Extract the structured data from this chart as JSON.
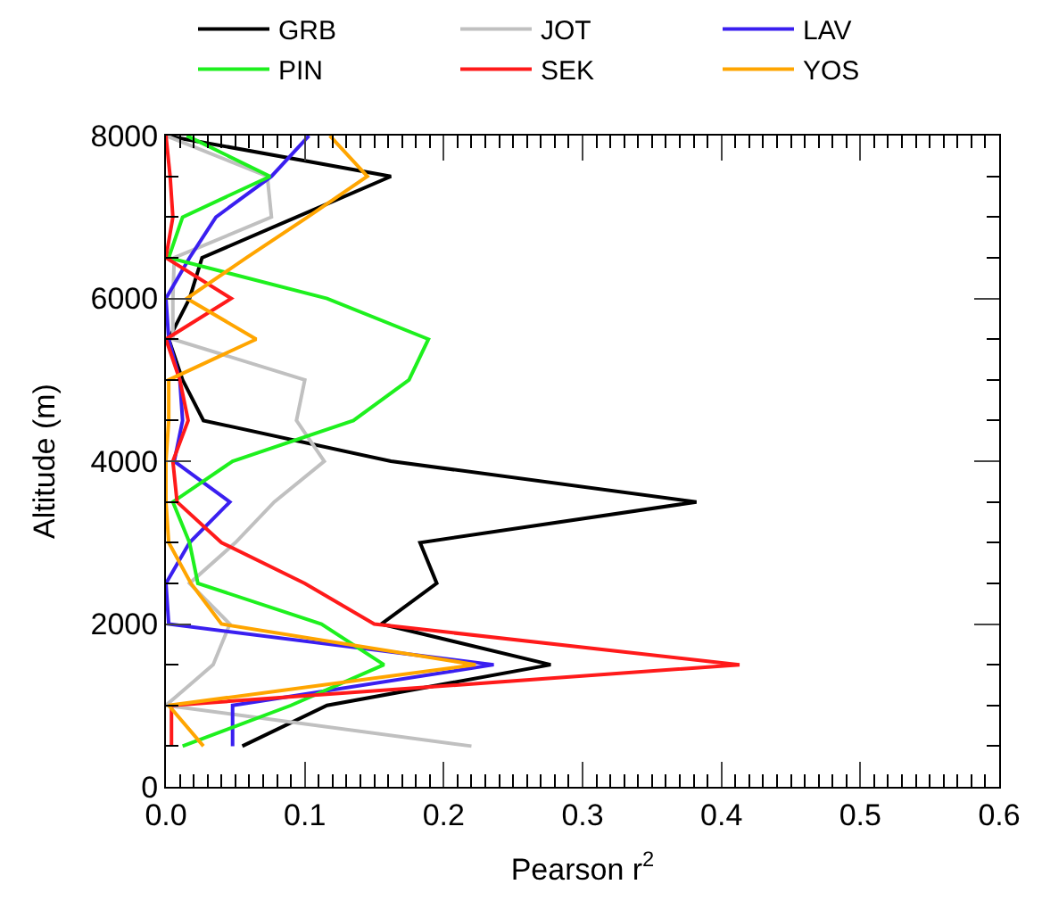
{
  "chart_data": {
    "type": "line",
    "xlabel": "Pearson r$^{2}$",
    "ylabel": "Altitude (m)",
    "xlim": [
      0,
      0.6
    ],
    "xticks": [
      {
        "value": 0,
        "label": "0.0"
      },
      0.1,
      0.2,
      0.3,
      0.4,
      0.5,
      0.6
    ],
    "ylim": [
      0,
      8000
    ],
    "yticks": [
      0,
      2000,
      4000,
      6000,
      8000
    ],
    "legend": "top",
    "marker": "none",
    "line_style": "solid",
    "series": [
      {
        "name": "GRB",
        "color": "#000000",
        "x": [
          0.055,
          0.116,
          0.277,
          0.155,
          0.195,
          0.183,
          0.382,
          0.162,
          0.027,
          0.012,
          0.002,
          0.017,
          0.026,
          0.094,
          0.162,
          0.0
        ],
        "values": [
          500,
          1000,
          1500,
          2000,
          2500,
          3000,
          3500,
          4000,
          4500,
          5000,
          5500,
          6000,
          6500,
          7000,
          7500,
          8000
        ]
      },
      {
        "name": "JOT",
        "color": "#c0c0c0",
        "x": [
          0.22,
          0.0,
          0.034,
          0.046,
          0.017,
          0.05,
          0.078,
          0.114,
          0.094,
          0.1,
          0.005,
          0.005,
          0.006,
          0.076,
          0.073,
          0.0
        ],
        "values": [
          500,
          1000,
          1500,
          2000,
          2500,
          3000,
          3500,
          4000,
          4500,
          5000,
          5500,
          6000,
          6500,
          7000,
          7500,
          8000
        ]
      },
      {
        "name": "LAV",
        "color": "#3a1ff0",
        "x": [
          0.048,
          0.048,
          0.236,
          0.002,
          0.0,
          0.017,
          0.046,
          0.006,
          0.012,
          0.01,
          0.002,
          0.0,
          0.017,
          0.036,
          0.076,
          0.103
        ],
        "values": [
          500,
          1000,
          1500,
          2000,
          2500,
          3000,
          3500,
          4000,
          4500,
          5000,
          5500,
          6000,
          6500,
          7000,
          7500,
          8000
        ]
      },
      {
        "name": "PIN",
        "color": "#1ef01e",
        "x": [
          0.012,
          0.09,
          0.157,
          0.112,
          0.023,
          0.017,
          0.005,
          0.048,
          0.135,
          0.175,
          0.189,
          0.116,
          0.002,
          0.012,
          0.075,
          0.015
        ],
        "values": [
          500,
          1000,
          1500,
          2000,
          2500,
          3000,
          3500,
          4000,
          4500,
          5000,
          5500,
          6000,
          6500,
          7000,
          7500,
          8000
        ]
      },
      {
        "name": "SEK",
        "color": "#ff1a1a",
        "x": [
          0.004,
          0.004,
          0.413,
          0.15,
          0.1,
          0.04,
          0.008,
          0.005,
          0.016,
          0.01,
          0.0,
          0.047,
          0.0,
          0.005,
          0.003,
          0.0
        ],
        "values": [
          500,
          1000,
          1500,
          2000,
          2500,
          3000,
          3500,
          4000,
          4500,
          5000,
          5500,
          6000,
          6500,
          7000,
          7500,
          8000
        ]
      },
      {
        "name": "YOS",
        "color": "#ffa500",
        "x": [
          0.027,
          0.002,
          0.223,
          0.04,
          0.018,
          0.002,
          0.0,
          0.0,
          0.002,
          0.002,
          0.065,
          0.015,
          0.058,
          0.102,
          0.145,
          0.118
        ],
        "values": [
          500,
          1000,
          1500,
          2000,
          2500,
          3000,
          3500,
          4000,
          4500,
          5000,
          5500,
          6000,
          6500,
          7000,
          7500,
          8000
        ]
      }
    ]
  }
}
